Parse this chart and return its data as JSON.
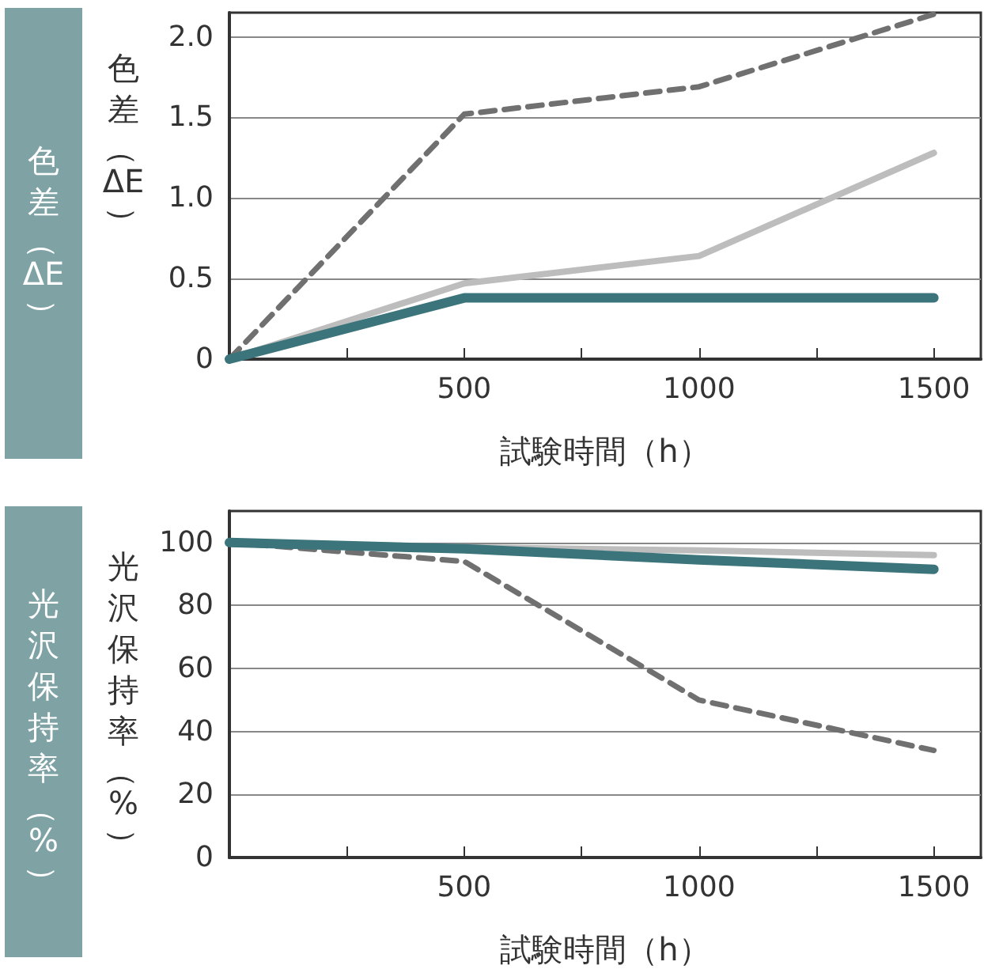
{
  "chart_data": [
    {
      "type": "line",
      "title": "色差（ΔE）",
      "xlabel": "試験時間（h）",
      "ylabel": "色差（ΔE）",
      "x": [
        0,
        500,
        1000,
        1500
      ],
      "xlim": [
        0,
        1600
      ],
      "ylim": [
        0,
        2.15
      ],
      "xticks": [
        {
          "value": 0,
          "label": null
        },
        {
          "value": 250,
          "label": null
        },
        500,
        {
          "value": 750,
          "label": null
        },
        1000,
        {
          "value": 1250,
          "label": null
        },
        1500
      ],
      "yticks": [
        0,
        0.5,
        {
          "value": 1,
          "label": "1.0"
        },
        1.5,
        {
          "value": 2,
          "label": "2.0"
        }
      ],
      "grid": "y",
      "marker": "none",
      "series": [
        {
          "color": "#707070",
          "line_style": "dashed",
          "values": [
            0,
            1.52,
            1.69,
            2.14
          ]
        },
        {
          "color": "#bdbdbd",
          "line_style": "solid",
          "values": [
            0,
            0.47,
            0.64,
            1.28
          ]
        },
        {
          "color": "#3b747a",
          "line_style": "solid",
          "values": [
            0,
            0.38,
            0.38,
            0.38
          ]
        }
      ]
    },
    {
      "type": "line",
      "title": "光沢保持率（%）",
      "xlabel": "試験時間（h）",
      "ylabel": "光沢保持率（%）",
      "x": [
        0,
        500,
        1000,
        1500
      ],
      "xlim": [
        0,
        1600
      ],
      "ylim": [
        0,
        110
      ],
      "xticks": [
        {
          "value": 0,
          "label": null
        },
        {
          "value": 250,
          "label": null
        },
        500,
        {
          "value": 750,
          "label": null
        },
        1000,
        {
          "value": 1250,
          "label": null
        },
        1500
      ],
      "yticks": [
        0,
        20,
        40,
        60,
        80,
        100
      ],
      "grid": "y",
      "marker": "none",
      "series": [
        {
          "color": "#707070",
          "line_style": "dashed",
          "values": [
            100,
            94,
            50,
            34
          ]
        },
        {
          "color": "#bdbdbd",
          "line_style": "solid",
          "values": [
            100,
            98.5,
            97.5,
            96
          ]
        },
        {
          "color": "#3b747a",
          "line_style": "solid",
          "values": [
            100,
            98,
            94.5,
            91.5
          ]
        }
      ]
    }
  ]
}
